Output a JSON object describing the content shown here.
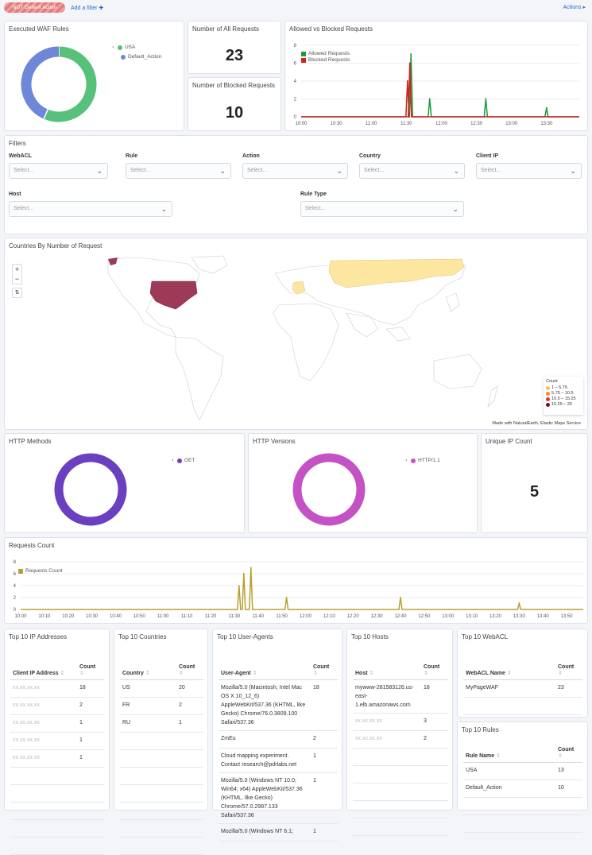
{
  "topbar": {
    "filter_pill": "NOT Default Action",
    "add_filter": "Add a filter",
    "actions": "Actions"
  },
  "waf_rules": {
    "title": "Executed WAF Rules",
    "slices": [
      {
        "label": "USA",
        "value": 13,
        "color": "#57c17b"
      },
      {
        "label": "Default_Action",
        "value": 10,
        "color": "#6f87d8"
      }
    ]
  },
  "all_requests": {
    "title": "Number of All Requests",
    "value": "23"
  },
  "blocked_requests": {
    "title": "Number of Blocked Requests",
    "value": "10"
  },
  "filters": {
    "title": "Filters",
    "placeholder": "Select...",
    "fields": [
      "WebACL",
      "Rule",
      "Action",
      "Country",
      "Client IP",
      "Host",
      "Rule Type"
    ]
  },
  "map": {
    "title": "Countries By Number of Request",
    "zoom_in": "+",
    "zoom_out": "−",
    "reset": "⇅",
    "attribution": "Made with NaturalEarth, Elastic Maps Service",
    "legend_title": "Count",
    "legend": [
      {
        "label": "1 – 5.75",
        "color": "#f6c35a"
      },
      {
        "label": "5.75 – 10.5",
        "color": "#f28a3a"
      },
      {
        "label": "10.5 – 15.25",
        "color": "#e0362a"
      },
      {
        "label": "15.25 – 20",
        "color": "#7a0a2a"
      }
    ],
    "countries": [
      {
        "name": "US",
        "value": 20,
        "color": "#9c3a57"
      },
      {
        "name": "FR",
        "value": 2,
        "color": "#fde6a0"
      },
      {
        "name": "RU",
        "value": 1,
        "color": "#fde6a0"
      }
    ]
  },
  "http_methods": {
    "title": "HTTP Methods",
    "slices": [
      {
        "label": "GET",
        "value": 23,
        "color": "#6a3fc0"
      }
    ]
  },
  "http_versions": {
    "title": "HTTP Versions",
    "slices": [
      {
        "label": "HTTP/1.1",
        "value": 23,
        "color": "#c552c5"
      }
    ]
  },
  "unique_ip": {
    "title": "Unique IP Count",
    "value": "5"
  },
  "chart_data": [
    {
      "type": "line",
      "title": "Allowed vs Blocked Requests",
      "ylim": [
        0,
        8
      ],
      "yticks": [
        "0",
        "2",
        "4",
        "6",
        "8"
      ],
      "xticks": [
        "10:00",
        "10:30",
        "11:00",
        "11:30",
        "12:00",
        "12:30",
        "13:00",
        "13:30"
      ],
      "xrange": [
        "10:00",
        "13:58"
      ],
      "legend": "top-left",
      "series": [
        {
          "name": "Allowed Requests",
          "color": "#1a9a3a",
          "points": [
            [
              "11:34",
              7
            ],
            [
              "11:50",
              2
            ],
            [
              "12:38",
              2
            ],
            [
              "13:30",
              1
            ]
          ]
        },
        {
          "name": "Blocked Requests",
          "color": "#d42020",
          "points": [
            [
              "11:31",
              4
            ],
            [
              "11:33",
              6
            ]
          ]
        }
      ]
    },
    {
      "type": "line",
      "title": "Requests Count",
      "ylim": [
        0,
        8
      ],
      "yticks": [
        "0",
        "2",
        "4",
        "6",
        "8"
      ],
      "xticks": [
        "10:00",
        "10:10",
        "10:20",
        "10:30",
        "10:40",
        "10:50",
        "11:00",
        "11:10",
        "11:20",
        "11:30",
        "11:40",
        "11:50",
        "12:00",
        "12:10",
        "12:20",
        "12:30",
        "12:40",
        "12:50",
        "13:00",
        "13:10",
        "13:20",
        "13:30",
        "13:40",
        "13:50"
      ],
      "xrange": [
        "10:00",
        "13:57"
      ],
      "legend": "top-left",
      "series": [
        {
          "name": "Requests Count",
          "color": "#b8a030",
          "points": [
            [
              "11:32",
              4
            ],
            [
              "11:34",
              6
            ],
            [
              "11:37",
              7
            ],
            [
              "11:52",
              2
            ],
            [
              "12:40",
              2
            ],
            [
              "13:30",
              1
            ]
          ]
        }
      ]
    }
  ],
  "tables": {
    "ip": {
      "title": "Top 10 IP Addresses",
      "headers": [
        "Client IP Address",
        "Count"
      ],
      "rows": [
        [
          "xx.xx.xx.xx",
          "18"
        ],
        [
          "xx.xx.xx.xx",
          "2"
        ],
        [
          "xx.xx.xx.xx",
          "1"
        ],
        [
          "xx.xx.xx.xx",
          "1"
        ],
        [
          "xx.xx.xx.xx",
          "1"
        ]
      ]
    },
    "countries": {
      "title": "Top 10 Countries",
      "headers": [
        "Country",
        "Count"
      ],
      "rows": [
        [
          "US",
          "20"
        ],
        [
          "FR",
          "2"
        ],
        [
          "RU",
          "1"
        ]
      ]
    },
    "ua": {
      "title": "Top 10 User-Agents",
      "headers": [
        "User-Agent",
        "Count"
      ],
      "rows": [
        [
          "Mozilla/5.0 (Macintosh; Intel Mac OS X 10_12_6) AppleWebKit/537.36 (KHTML, like Gecko) Chrome/76.0.3809.100 Safari/537.36",
          "18"
        ],
        [
          "ZmEu",
          "2"
        ],
        [
          "Cloud mapping experiment. Contact research@pdrlabs.net",
          "1"
        ],
        [
          "Mozilla/5.0 (Windows NT 10.0; Win64; x64) AppleWebKit/537.36 (KHTML, like Gecko) Chrome/57.0.2987.133 Safari/537.36",
          "1"
        ],
        [
          "Mozilla/5.0 (Windows NT 6.1;",
          "1"
        ]
      ]
    },
    "hosts": {
      "title": "Top 10 Hosts",
      "headers": [
        "Host",
        "Count"
      ],
      "rows": [
        [
          "mywww-281583126.us-east-1.elb.amazonaws.com",
          "18"
        ],
        [
          "xx.xx.xx.xx",
          "3"
        ],
        [
          "xx.xx.xx.xx",
          "2"
        ]
      ]
    },
    "webacl": {
      "title": "Top 10 WebACL",
      "headers": [
        "WebACL Name",
        "Count"
      ],
      "rows": [
        [
          "MyPageWAF",
          "23"
        ]
      ]
    },
    "rules": {
      "title": "Top 10 Rules",
      "headers": [
        "Rule Name",
        "Count"
      ],
      "rows": [
        [
          "USA",
          "13"
        ],
        [
          "Default_Action",
          "10"
        ]
      ]
    }
  }
}
